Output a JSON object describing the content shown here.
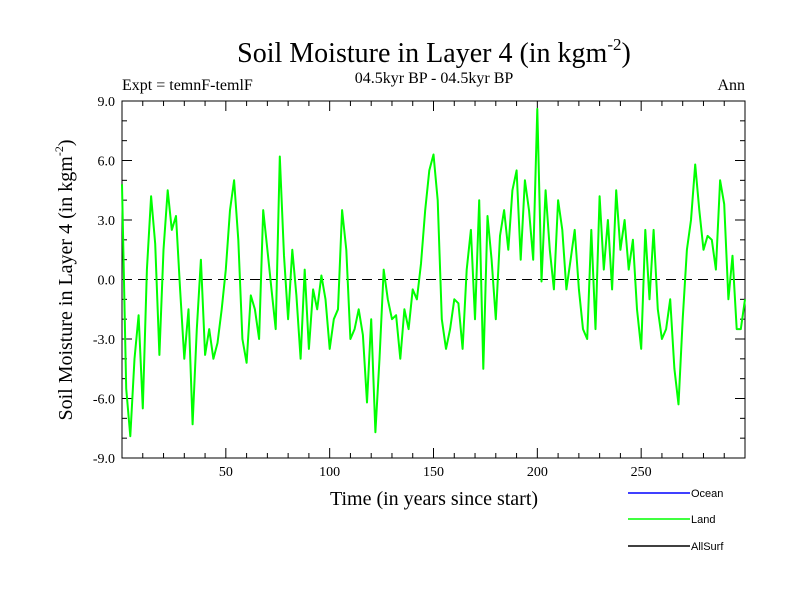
{
  "chart_data": {
    "type": "line",
    "title_main": "Soil Moisture in Layer 4 (in kgm",
    "title_sup": "-2",
    "title_close": ")",
    "subtitle": "04.5kyr BP - 04.5kyr BP",
    "left_label": "Expt = temnF-temlF",
    "right_label": "Ann",
    "xlabel": "Time (in years since start)",
    "ylabel_main": "Soil Moisture in Layer 4 (in kgm",
    "ylabel_sup": "-2",
    "ylabel_close": ")",
    "xlim": [
      0,
      300
    ],
    "ylim": [
      -9,
      9
    ],
    "x_ticks": [
      50,
      100,
      150,
      200,
      250
    ],
    "y_ticks": [
      -9,
      -6,
      -3,
      0,
      3,
      6,
      9
    ],
    "x_tick_labels": [
      "50",
      "100",
      "150",
      "200",
      "250"
    ],
    "y_tick_labels": [
      "-9.0",
      "-6.0",
      "-3.0",
      "0.0",
      "3.0",
      "6.0",
      "9.0"
    ],
    "zero_line": "dashed",
    "legend": [
      {
        "name": "Ocean",
        "color": "#0000ff"
      },
      {
        "name": "Land",
        "color": "#00ff00"
      },
      {
        "name": "AllSurf",
        "color": "#000000"
      }
    ],
    "series": [
      {
        "name": "Land",
        "color": "#00ff00",
        "x_start": 0,
        "x_step": 2,
        "values": [
          4.8,
          -5.5,
          -7.9,
          -4.0,
          -1.8,
          -6.5,
          0.5,
          4.2,
          1.8,
          -3.8,
          1.5,
          4.5,
          2.5,
          3.2,
          -0.5,
          -4.0,
          -1.5,
          -7.3,
          -2.5,
          1.0,
          -3.8,
          -2.5,
          -4.0,
          -3.2,
          -1.5,
          0.5,
          3.5,
          5.0,
          2.0,
          -3.0,
          -4.2,
          -0.8,
          -1.5,
          -3.0,
          3.5,
          1.5,
          -0.5,
          -2.5,
          6.2,
          1.2,
          -2.0,
          1.5,
          -0.8,
          -4.0,
          0.5,
          -3.5,
          -0.5,
          -1.5,
          0.2,
          -1.0,
          -3.5,
          -2.0,
          -1.5,
          3.5,
          1.5,
          -3.0,
          -2.5,
          -1.5,
          -2.8,
          -6.2,
          -2.0,
          -7.7,
          -4.0,
          0.5,
          -1.0,
          -2.0,
          -1.8,
          -4.0,
          -1.5,
          -2.5,
          -0.5,
          -1.0,
          0.8,
          3.5,
          5.5,
          6.3,
          4.0,
          -2.0,
          -3.5,
          -2.5,
          -1.0,
          -1.2,
          -3.5,
          0.5,
          2.5,
          -2.0,
          4.0,
          -4.5,
          3.2,
          1.0,
          -2.0,
          2.2,
          3.5,
          1.5,
          4.5,
          5.5,
          1.0,
          5.0,
          3.5,
          1.0,
          8.6,
          -0.1,
          4.5,
          1.5,
          -0.5,
          4.0,
          2.5,
          -0.5,
          1.0,
          2.5,
          -0.5,
          -2.5,
          -3.0,
          2.5,
          -2.5,
          4.2,
          0.5,
          3.0,
          -0.5,
          4.5,
          1.5,
          3.0,
          0.5,
          2.0,
          -1.5,
          -3.5,
          2.5,
          -1.0,
          2.5,
          -1.5,
          -3.0,
          -2.5,
          -1.0,
          -4.5,
          -6.3,
          -2.0,
          1.5,
          3.0,
          5.8,
          3.5,
          1.5,
          2.2,
          2.0,
          0.5,
          5.0,
          3.8,
          -1.0,
          1.2,
          -2.5,
          -2.5,
          -1.0
        ]
      }
    ]
  }
}
